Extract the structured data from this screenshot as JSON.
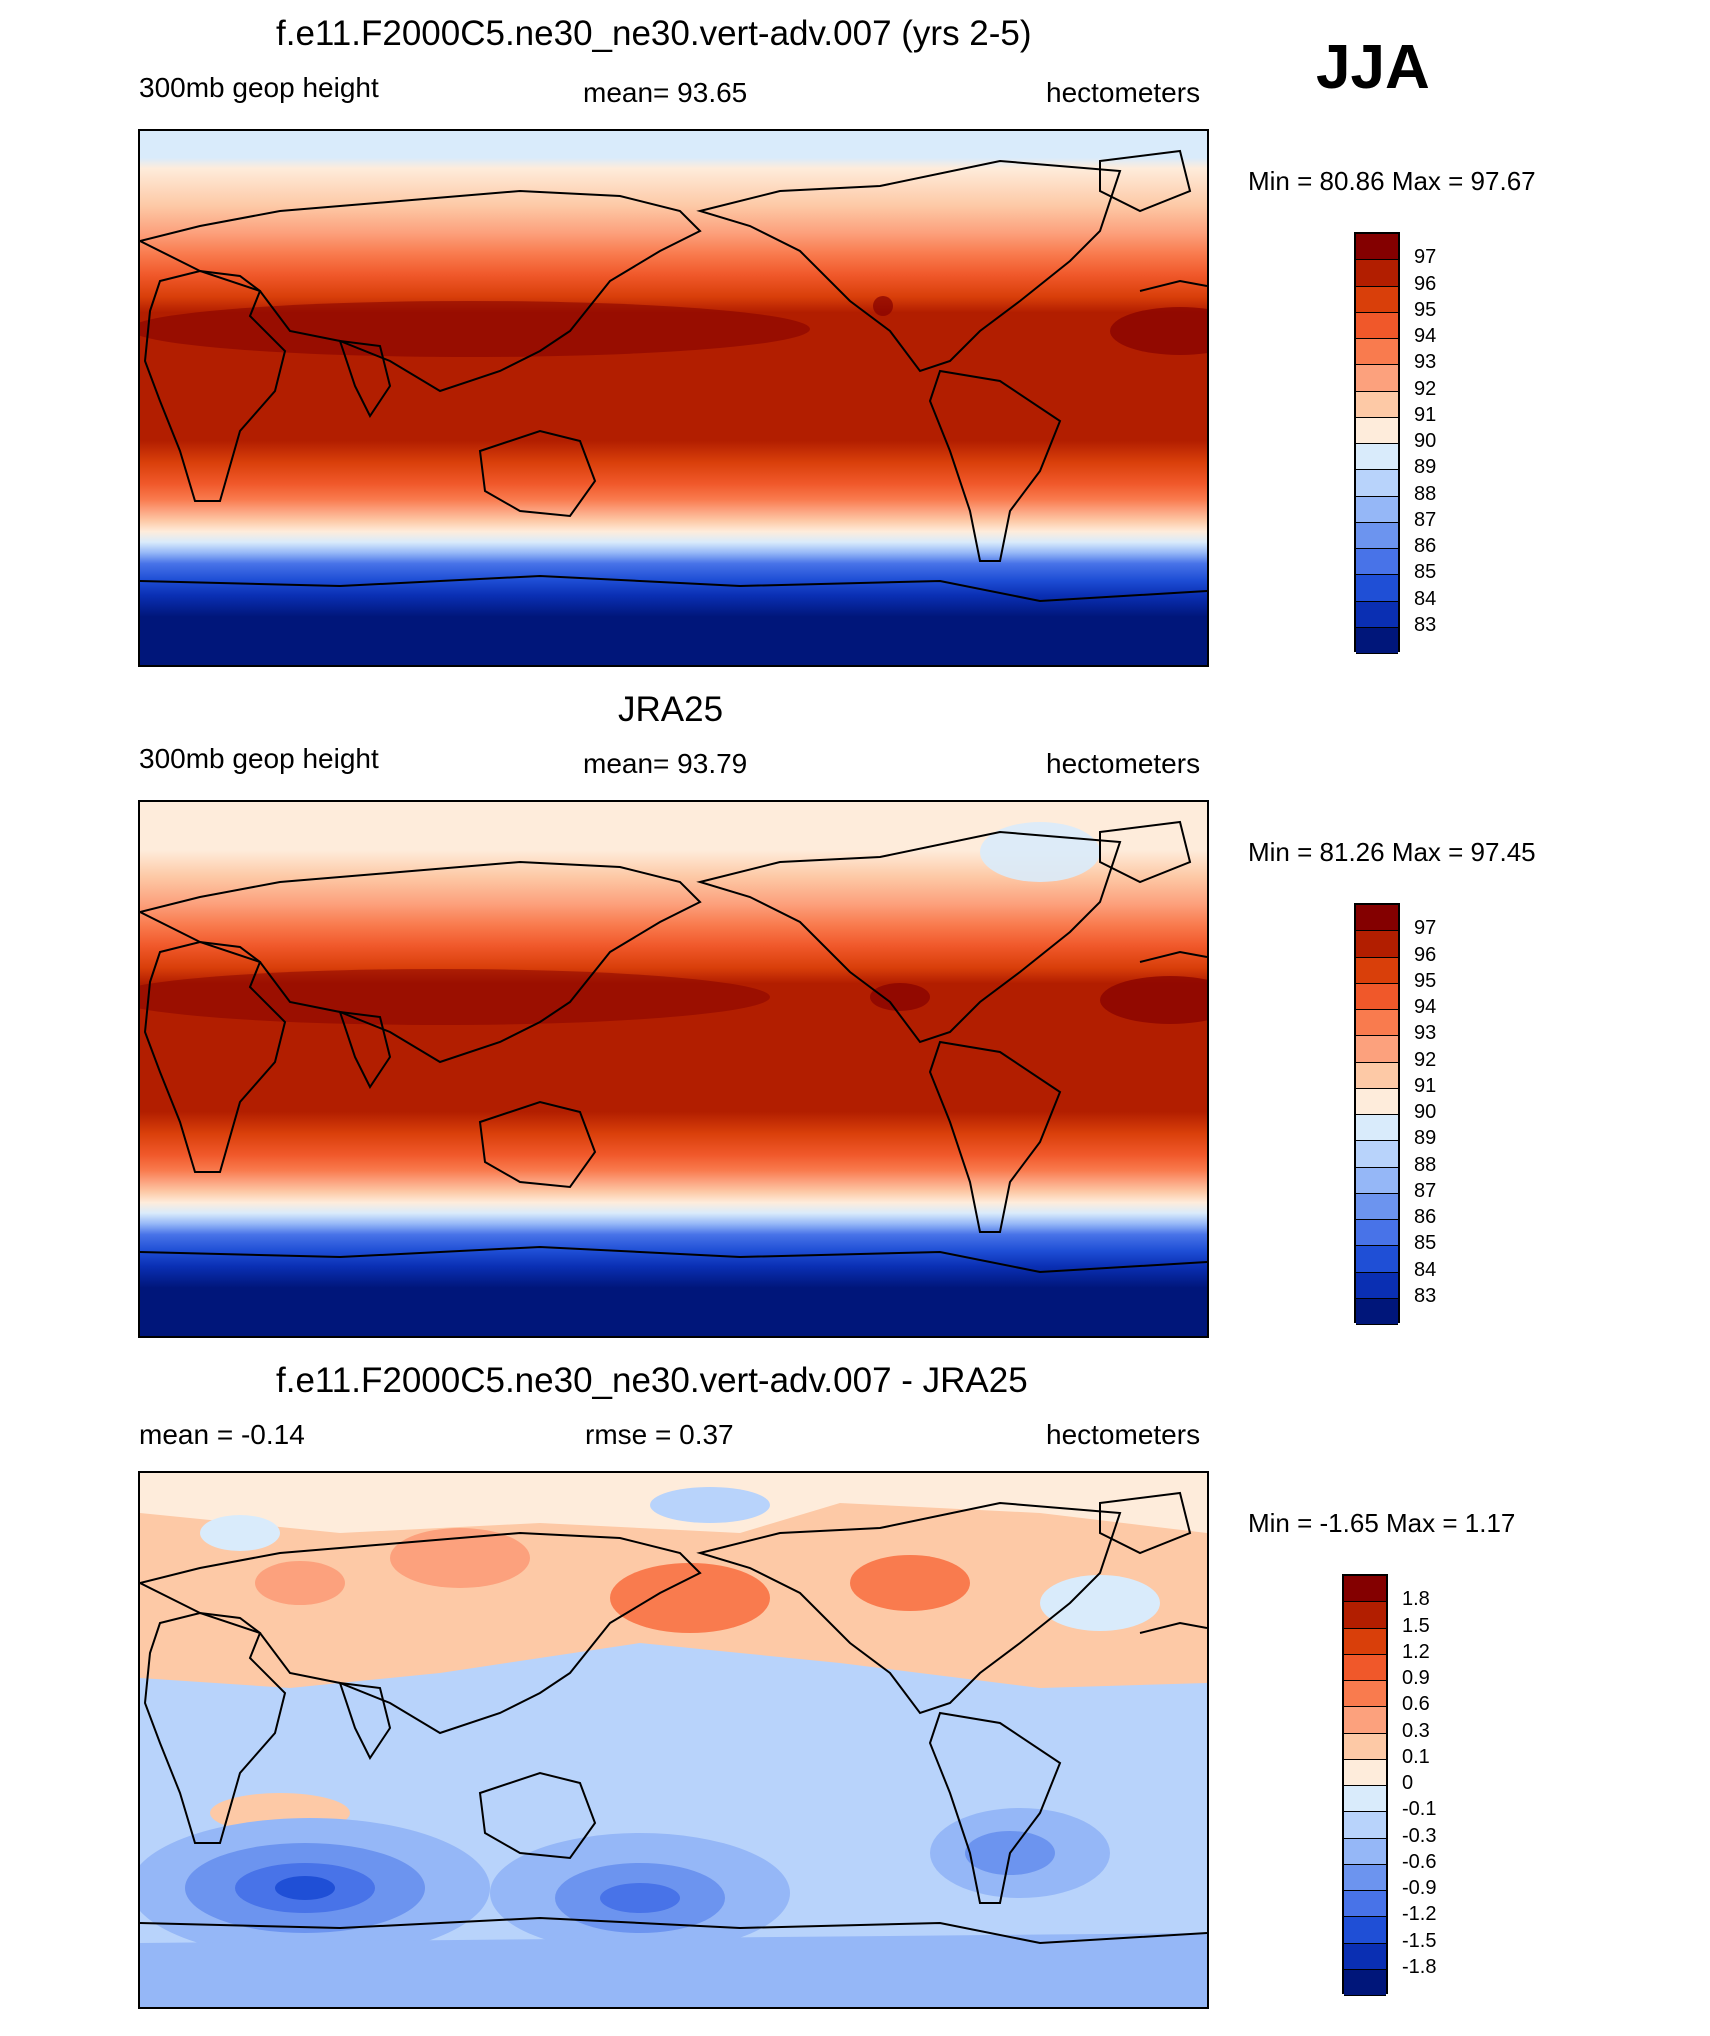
{
  "season": "JJA",
  "panels": [
    {
      "title": "f.e11.F2000C5.ne30_ne30.vert-adv.007 (yrs 2-5)",
      "left_text": "300mb geop height",
      "center_text": "mean=  93.65",
      "right_text": "hectometers",
      "minmax": "Min =  80.86 Max =  97.67",
      "levels": [
        "97",
        "96",
        "95",
        "94",
        "93",
        "92",
        "91",
        "90",
        "89",
        "88",
        "87",
        "86",
        "85",
        "84",
        "83"
      ]
    },
    {
      "title": "JRA25",
      "left_text": "300mb geop height",
      "center_text": "mean=  93.79",
      "right_text": "hectometers",
      "minmax": "Min =  81.26 Max =  97.45",
      "levels": [
        "97",
        "96",
        "95",
        "94",
        "93",
        "92",
        "91",
        "90",
        "89",
        "88",
        "87",
        "86",
        "85",
        "84",
        "83"
      ]
    },
    {
      "title": "f.e11.F2000C5.ne30_ne30.vert-adv.007 - JRA25",
      "left_text": "mean =  -0.14",
      "center_text": "rmse =   0.37",
      "right_text": "hectometers",
      "minmax": "Min =  -1.65 Max =   1.17",
      "levels": [
        "1.8",
        "1.5",
        "1.2",
        "0.9",
        "0.6",
        "0.3",
        "0.1",
        "0",
        "-0.1",
        "-0.3",
        "-0.6",
        "-0.9",
        "-1.2",
        "-1.5",
        "-1.8"
      ]
    }
  ],
  "colors": {
    "scale": [
      "#840000",
      "#b21e00",
      "#d93f0a",
      "#f0582a",
      "#f97b4e",
      "#fca17d",
      "#fdc9a6",
      "#feecdb",
      "#d9ebfb",
      "#b8d3fb",
      "#95b7f7",
      "#6c94ef",
      "#4873e8",
      "#1f4fd6",
      "#0a2fb3",
      "#00167a"
    ],
    "anomaly_scale": [
      "#840000",
      "#b21e00",
      "#d93f0a",
      "#f0582a",
      "#f97b4e",
      "#fca17d",
      "#fdc9a6",
      "#feecdb",
      "#d9ebfb",
      "#b8d3fb",
      "#95b7f7",
      "#6c94ef",
      "#4873e8",
      "#1f4fd6",
      "#0a2fb3",
      "#00167a"
    ]
  }
}
